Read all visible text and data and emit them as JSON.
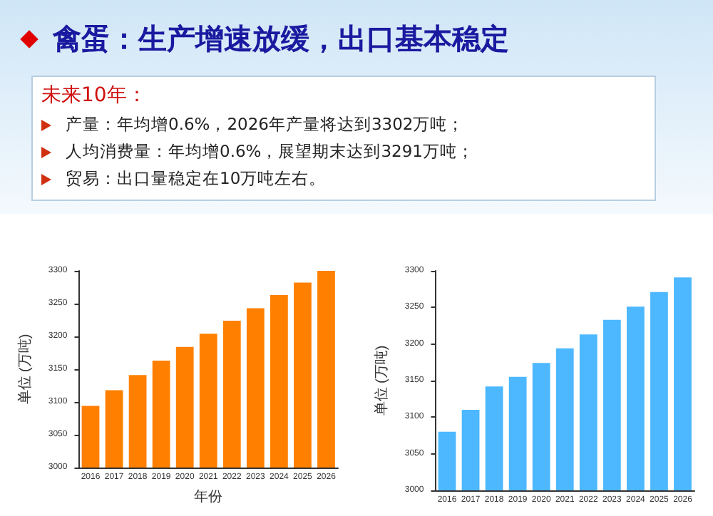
{
  "chart_data": [
    {
      "type": "other",
      "title": "禽蛋：生产增速放缓，出口基本稳定",
      "annotations": [
        "未来10年：",
        "产量：年均增0.6%，2026年产量将达到3302万吨；",
        "人均消费量：年均增0.6%，展望期末达到3291万吨；",
        "贸易：出口量稳定在10万吨左右。"
      ]
    },
    {
      "type": "bar",
      "xlabel": "年份",
      "ylabel": "单位 (万吨)",
      "categories": [
        "2016",
        "2017",
        "2018",
        "2019",
        "2020",
        "2021",
        "2022",
        "2023",
        "2024",
        "2025",
        "2026"
      ],
      "series": [
        {
          "color": "#ff8000",
          "values": [
            3094,
            3118,
            3141,
            3163,
            3184,
            3204,
            3224,
            3243,
            3263,
            3282,
            3300
          ]
        }
      ],
      "ylim": [
        3000,
        3300
      ],
      "yticks": [
        3000,
        3050,
        3100,
        3150,
        3200,
        3250,
        3300
      ],
      "grid": false
    },
    {
      "type": "bar",
      "ylabel": "单位 (万吨)",
      "categories": [
        "2016",
        "2017",
        "2018",
        "2019",
        "2020",
        "2021",
        "2022",
        "2023",
        "2024",
        "2025",
        "2026"
      ],
      "series": [
        {
          "color": "#4db8ff",
          "values": [
            3080,
            3110,
            3142,
            3155,
            3174,
            3194,
            3213,
            3233,
            3251,
            3271,
            3291
          ]
        }
      ],
      "ylim": [
        3000,
        3300
      ],
      "yticks": [
        3000,
        3050,
        3100,
        3150,
        3200,
        3250,
        3300
      ],
      "grid": false
    }
  ]
}
